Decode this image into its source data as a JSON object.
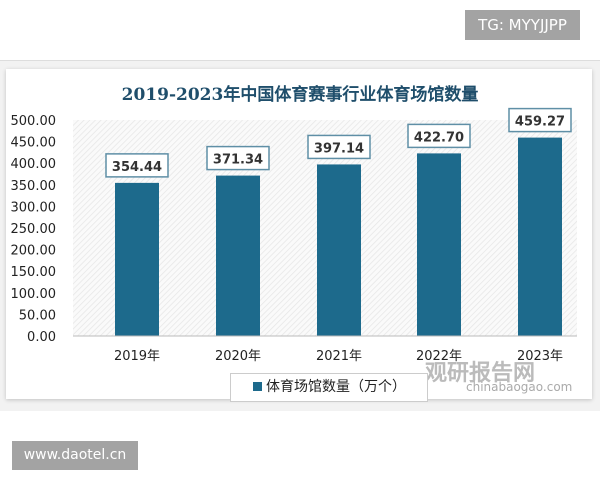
{
  "overlay": {
    "tg": "TG: MYYJJPP",
    "site": "www.daotel.cn",
    "watermark_cn": "观研报告网",
    "watermark_en": "chinabaogao.com"
  },
  "chart_data": {
    "type": "bar",
    "title": "2019-2023年中国体育赛事行业体育场馆数量",
    "categories": [
      "2019年",
      "2020年",
      "2021年",
      "2022年",
      "2023年"
    ],
    "series": [
      {
        "name": "体育场馆数量（万个）",
        "values": [
          354.44,
          371.34,
          397.14,
          422.7,
          459.27
        ],
        "color": "#1d6a8c"
      }
    ],
    "data_labels": [
      "354.44",
      "371.34",
      "397.14",
      "422.70",
      "459.27"
    ],
    "yticks": [
      "0.00",
      "50.00",
      "100.00",
      "150.00",
      "200.00",
      "250.00",
      "300.00",
      "350.00",
      "400.00",
      "450.00",
      "500.00"
    ],
    "ylim": [
      0,
      500
    ],
    "legend_position": "bottom",
    "grid": false
  }
}
